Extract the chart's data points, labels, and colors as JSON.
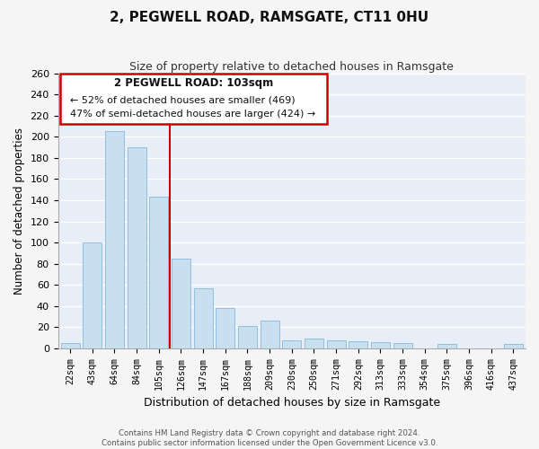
{
  "title": "2, PEGWELL ROAD, RAMSGATE, CT11 0HU",
  "subtitle": "Size of property relative to detached houses in Ramsgate",
  "xlabel": "Distribution of detached houses by size in Ramsgate",
  "ylabel": "Number of detached properties",
  "bar_color": "#c8dff0",
  "bar_edge_color": "#8ab8d8",
  "background_color": "#e8eef8",
  "fig_background_color": "#f5f5f5",
  "annotation_box_color": "#ffffff",
  "annotation_border_color": "#cc0000",
  "vline_color": "#cc0000",
  "grid_color": "#ffffff",
  "categories": [
    "22sqm",
    "43sqm",
    "64sqm",
    "84sqm",
    "105sqm",
    "126sqm",
    "147sqm",
    "167sqm",
    "188sqm",
    "209sqm",
    "230sqm",
    "250sqm",
    "271sqm",
    "292sqm",
    "313sqm",
    "333sqm",
    "354sqm",
    "375sqm",
    "396sqm",
    "416sqm",
    "437sqm"
  ],
  "values": [
    5,
    100,
    205,
    190,
    143,
    85,
    57,
    38,
    21,
    26,
    8,
    9,
    8,
    7,
    6,
    5,
    0,
    4,
    0,
    0,
    4
  ],
  "ylim": [
    0,
    260
  ],
  "yticks": [
    0,
    20,
    40,
    60,
    80,
    100,
    120,
    140,
    160,
    180,
    200,
    220,
    240,
    260
  ],
  "vline_position": 4.5,
  "annotation_title": "2 PEGWELL ROAD: 103sqm",
  "annotation_line1": "← 52% of detached houses are smaller (469)",
  "annotation_line2": "47% of semi-detached houses are larger (424) →",
  "footnote1": "Contains HM Land Registry data © Crown copyright and database right 2024.",
  "footnote2": "Contains public sector information licensed under the Open Government Licence v3.0."
}
